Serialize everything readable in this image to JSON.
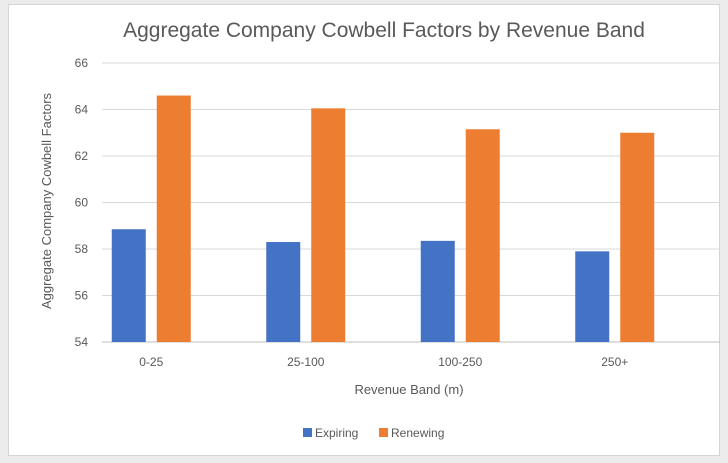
{
  "chart_data": {
    "type": "bar",
    "title": "Aggregate Company Cowbell Factors by Revenue Band",
    "xlabel": "Revenue Band (m)",
    "ylabel": "Aggregate Company Cowbell Factors",
    "categories": [
      "0-25",
      "25-100",
      "100-250",
      "250+"
    ],
    "series": [
      {
        "name": "Expiring",
        "color": "#4472c4",
        "values": [
          58.85,
          58.3,
          58.35,
          57.9
        ]
      },
      {
        "name": "Renewing",
        "color": "#ed7d31",
        "values": [
          64.6,
          64.05,
          63.15,
          63.0
        ]
      }
    ],
    "ylim": [
      54,
      66
    ],
    "yticks": [
      54,
      56,
      58,
      60,
      62,
      64,
      66
    ],
    "grid": true,
    "legend": "bottom"
  }
}
